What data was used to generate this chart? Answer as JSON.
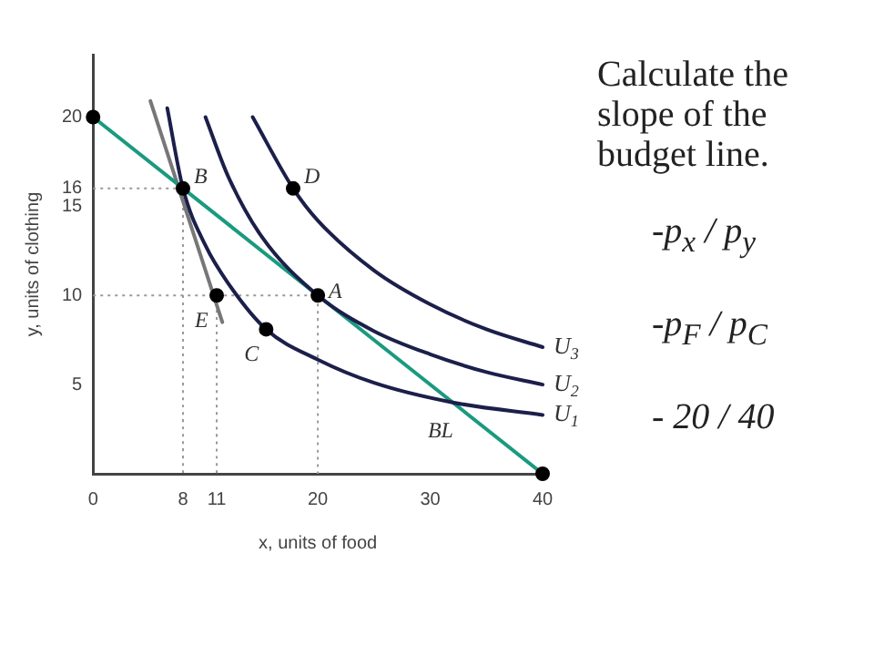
{
  "chart_data": {
    "type": "line",
    "xlabel": "x, units of food",
    "ylabel": "y, units of clothing",
    "xlim": [
      0,
      40
    ],
    "ylim": [
      0,
      23.5
    ],
    "xticks": [
      0,
      8,
      11,
      20,
      30,
      40
    ],
    "yticks": [
      5,
      10,
      15,
      16,
      20
    ],
    "grid": false,
    "legend": false,
    "series": [
      {
        "type": "line",
        "name": "U$_{1}$",
        "color": "#1c1f4a",
        "marker": "none",
        "line_style": "solid",
        "x": [
          6.6,
          8,
          10,
          12,
          15.4,
          20,
          25,
          32,
          40
        ],
        "values": [
          20.5,
          16,
          12.8,
          10.7,
          8.1,
          6.4,
          5.1,
          4,
          3.3
        ]
      },
      {
        "type": "line",
        "name": "U$_{2}$",
        "color": "#1c1f4a",
        "marker": "none",
        "line_style": "solid",
        "x": [
          10,
          12,
          15,
          20,
          25,
          30,
          35,
          40
        ],
        "values": [
          20,
          16.7,
          13.3,
          10,
          8,
          6.7,
          5.7,
          5
        ]
      },
      {
        "type": "line",
        "name": "U$_{3}$",
        "color": "#1c1f4a",
        "marker": "none",
        "line_style": "solid",
        "x": [
          14.2,
          17.8,
          20,
          25,
          30,
          35,
          40
        ],
        "values": [
          20,
          16,
          14.2,
          11.4,
          9.5,
          8.1,
          7.1
        ]
      },
      {
        "type": "line",
        "color": "#1a9a7f",
        "marker": "none",
        "line_style": "solid",
        "x": [
          0,
          40
        ],
        "values": [
          20,
          0
        ]
      },
      {
        "type": "line",
        "color": "#777777",
        "marker": "none",
        "line_style": "solid",
        "x": [
          5.1,
          11.5
        ],
        "values": [
          20.9,
          8.5
        ]
      },
      {
        "type": "line",
        "color": "#999999",
        "marker": "none",
        "line_style": "dotted",
        "x": [
          0,
          8,
          8
        ],
        "values": [
          16,
          16,
          0
        ]
      },
      {
        "type": "line",
        "color": "#999999",
        "marker": "none",
        "line_style": "dotted",
        "x": [
          0,
          20,
          20
        ],
        "values": [
          10,
          10,
          0
        ]
      },
      {
        "type": "line",
        "color": "#999999",
        "marker": "none",
        "line_style": "dotted",
        "x": [
          11,
          11
        ],
        "values": [
          10,
          0
        ]
      },
      {
        "type": "scatter",
        "color": "#000000",
        "marker": "circle",
        "x": [
          0,
          8,
          20,
          11,
          15.4,
          17.8,
          40
        ],
        "values": [
          20,
          16,
          10,
          10,
          8.1,
          16,
          0
        ]
      }
    ],
    "annotations": [
      {
        "text": "A",
        "x": 20,
        "y": 10
      },
      {
        "text": "B",
        "x": 8,
        "y": 16
      },
      {
        "text": "C",
        "x": 15.4,
        "y": 8.1
      },
      {
        "text": "D",
        "x": 17.8,
        "y": 16
      },
      {
        "text": "E",
        "x": 11,
        "y": 10
      },
      {
        "text": "BL",
        "x": 34,
        "y": 3
      },
      "Calculate the slope of the budget line.",
      "-p$_{x}$ / p$_{y}$",
      "-p$_{F}$ / p$_{C}$",
      "- 20 / 40"
    ]
  }
}
